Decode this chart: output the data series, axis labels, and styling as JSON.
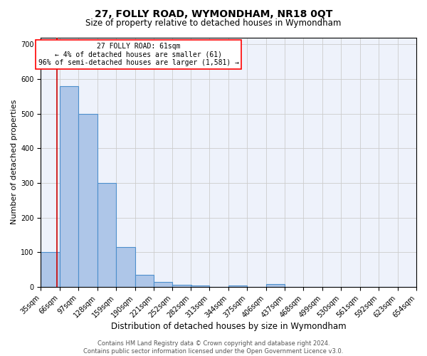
{
  "title1": "27, FOLLY ROAD, WYMONDHAM, NR18 0QT",
  "title2": "Size of property relative to detached houses in Wymondham",
  "xlabel": "Distribution of detached houses by size in Wymondham",
  "ylabel": "Number of detached properties",
  "bin_edges": [
    35,
    66,
    97,
    128,
    159,
    190,
    221,
    252,
    282,
    313,
    344,
    375,
    406,
    437,
    468,
    499,
    530,
    561,
    592,
    623,
    654
  ],
  "bar_heights": [
    100,
    580,
    500,
    300,
    115,
    35,
    15,
    7,
    5,
    0,
    5,
    0,
    8,
    0,
    0,
    0,
    0,
    0,
    0,
    0
  ],
  "bar_color": "#aec6e8",
  "bar_edge_color": "#4d8fcc",
  "bar_edge_width": 0.8,
  "red_line_x": 61,
  "red_line_color": "#cc0000",
  "annotation_box_text": "27 FOLLY ROAD: 61sqm\n← 4% of detached houses are smaller (61)\n96% of semi-detached houses are larger (1,581) →",
  "ylim": [
    0,
    720
  ],
  "yticks": [
    0,
    100,
    200,
    300,
    400,
    500,
    600,
    700
  ],
  "grid_color": "#cccccc",
  "background_color": "#eef2fb",
  "footer_text": "Contains HM Land Registry data © Crown copyright and database right 2024.\nContains public sector information licensed under the Open Government Licence v3.0.",
  "title1_fontsize": 10,
  "title2_fontsize": 8.5,
  "xlabel_fontsize": 8.5,
  "ylabel_fontsize": 8,
  "tick_fontsize": 7,
  "footer_fontsize": 6,
  "ann_fontsize": 7
}
